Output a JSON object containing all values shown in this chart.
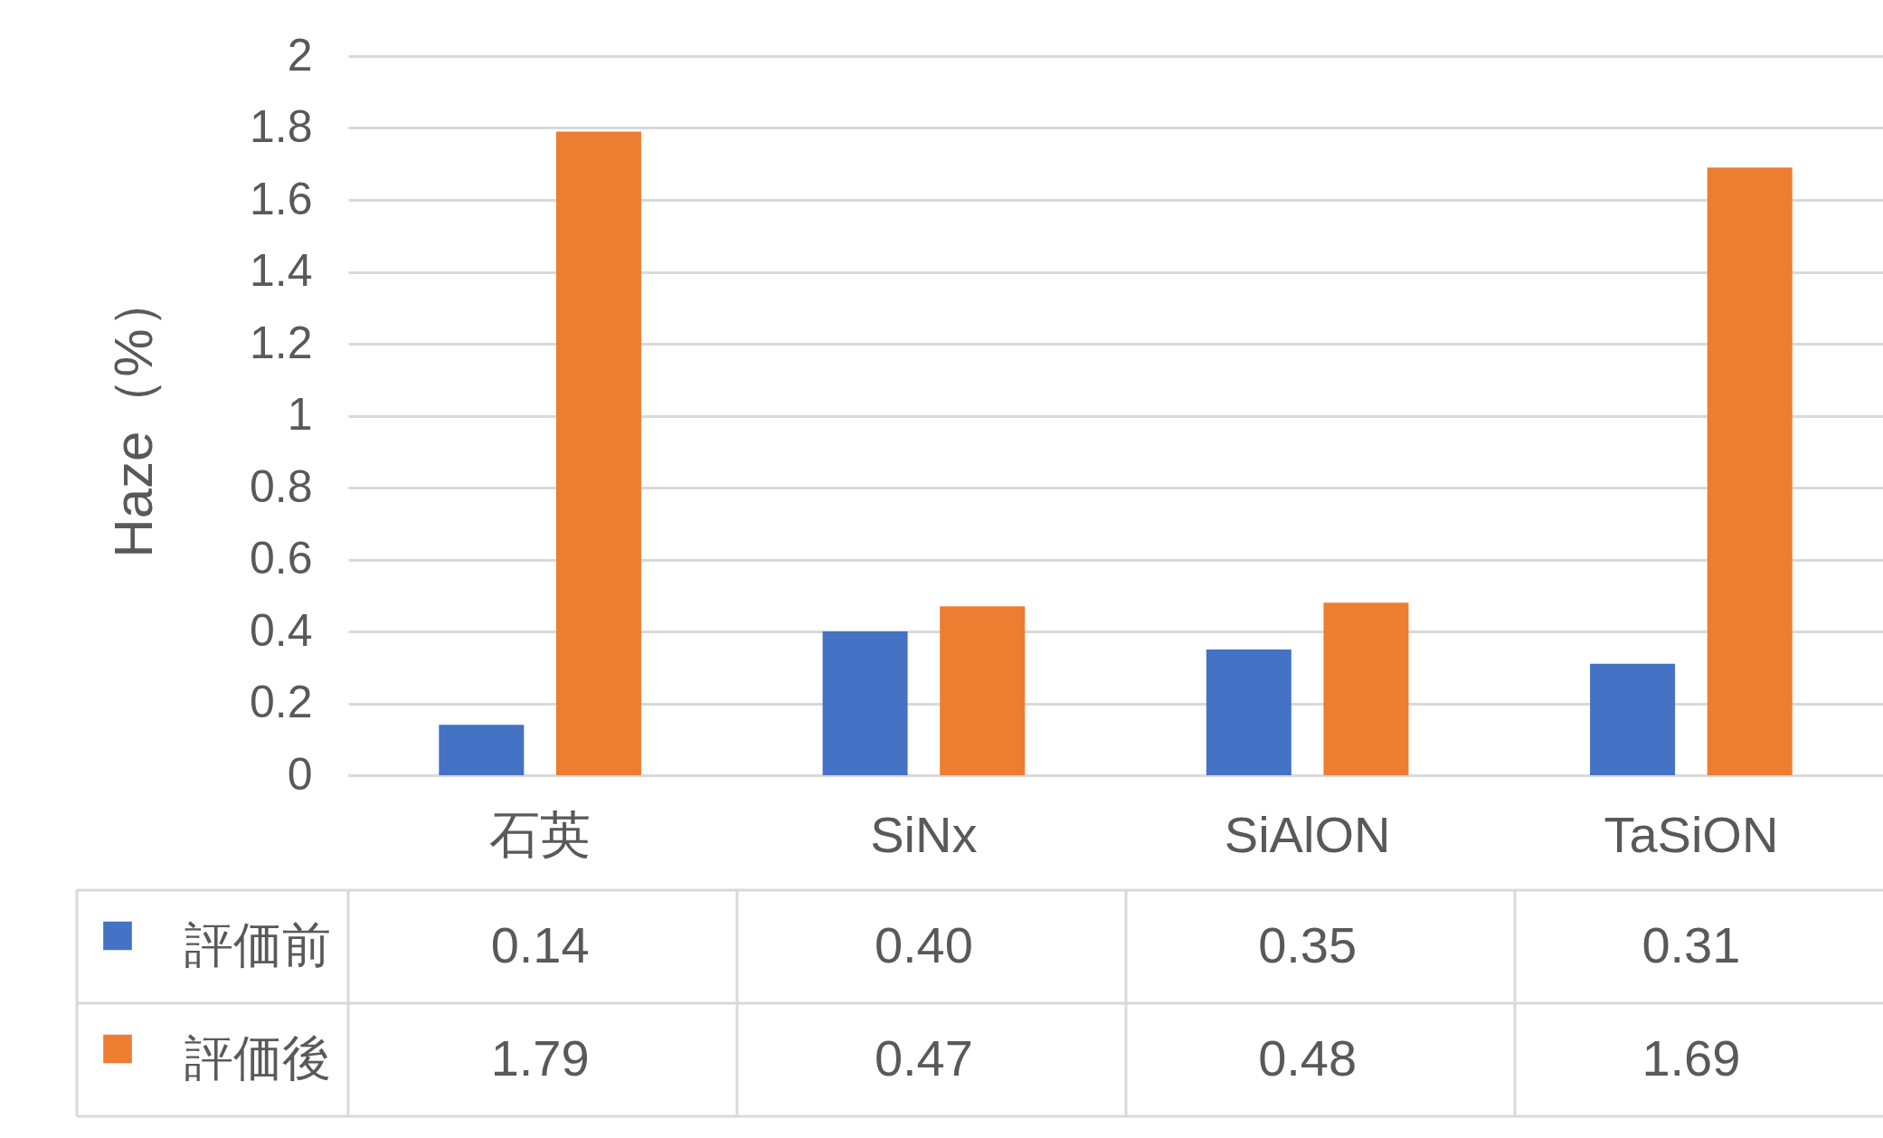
{
  "chart_data": {
    "type": "bar",
    "ylabel": "Haze（%）",
    "categories": [
      "石英",
      "SiNx",
      "SiAlON",
      "TaSiON"
    ],
    "series": [
      {
        "name": "評価前",
        "color": "#4472c4",
        "values": [
          0.14,
          0.4,
          0.35,
          0.31
        ],
        "value_labels": [
          "0.14",
          "0.40",
          "0.35",
          "0.31"
        ]
      },
      {
        "name": "評価後",
        "color": "#ed7d31",
        "values": [
          1.79,
          0.47,
          0.48,
          1.69
        ],
        "value_labels": [
          "1.79",
          "0.47",
          "0.48",
          "1.69"
        ]
      }
    ],
    "ylim": [
      0,
      2
    ],
    "yticks": [
      0,
      0.2,
      0.4,
      0.6,
      0.8,
      1,
      1.2,
      1.4,
      1.6,
      1.8,
      2
    ],
    "grid": "y",
    "legend": "bottom"
  }
}
